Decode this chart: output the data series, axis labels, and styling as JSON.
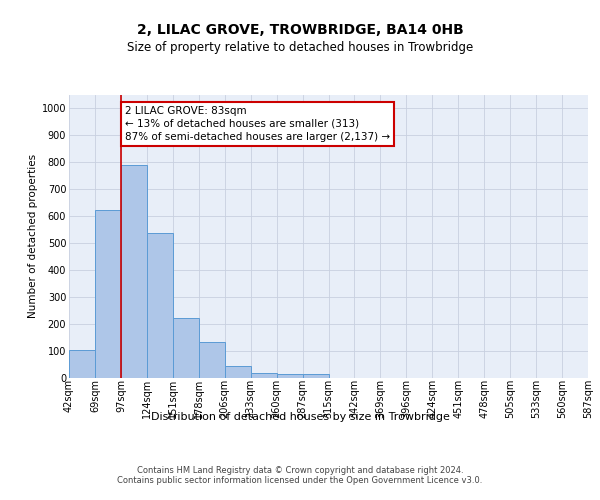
{
  "title": "2, LILAC GROVE, TROWBRIDGE, BA14 0HB",
  "subtitle": "Size of property relative to detached houses in Trowbridge",
  "xlabel": "Distribution of detached houses by size in Trowbridge",
  "ylabel": "Number of detached properties",
  "bar_values": [
    103,
    621,
    790,
    537,
    221,
    133,
    42,
    17,
    12,
    13,
    0,
    0,
    0,
    0,
    0,
    0,
    0,
    0,
    0,
    0
  ],
  "bar_labels": [
    "42sqm",
    "69sqm",
    "97sqm",
    "124sqm",
    "151sqm",
    "178sqm",
    "206sqm",
    "233sqm",
    "260sqm",
    "287sqm",
    "315sqm",
    "342sqm",
    "369sqm",
    "396sqm",
    "424sqm",
    "451sqm",
    "478sqm",
    "505sqm",
    "533sqm",
    "560sqm",
    "587sqm"
  ],
  "bar_color": "#aec6e8",
  "bar_edge_color": "#5b9bd5",
  "vline_x": 2.0,
  "vline_color": "#cc0000",
  "annotation_text": "2 LILAC GROVE: 83sqm\n← 13% of detached houses are smaller (313)\n87% of semi-detached houses are larger (2,137) →",
  "annotation_box_color": "#ffffff",
  "annotation_box_edge": "#cc0000",
  "ylim": [
    0,
    1050
  ],
  "yticks": [
    0,
    100,
    200,
    300,
    400,
    500,
    600,
    700,
    800,
    900,
    1000
  ],
  "grid_color": "#c8d0e0",
  "background_color": "#e8eef8",
  "footer_text": "Contains HM Land Registry data © Crown copyright and database right 2024.\nContains public sector information licensed under the Open Government Licence v3.0.",
  "title_fontsize": 10,
  "subtitle_fontsize": 8.5,
  "ylabel_fontsize": 7.5,
  "xlabel_fontsize": 8,
  "tick_fontsize": 7,
  "footer_fontsize": 6,
  "ann_fontsize": 7.5
}
